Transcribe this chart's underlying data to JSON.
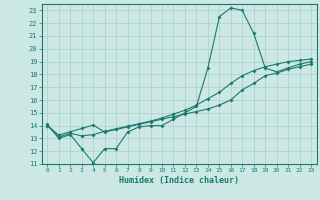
{
  "title": "",
  "xlabel": "Humidex (Indice chaleur)",
  "bg_color": "#cce8e4",
  "line_color": "#1a7a6e",
  "grid_color": "#aacfcb",
  "xlim": [
    -0.5,
    23.5
  ],
  "ylim": [
    11,
    23.5
  ],
  "xticks": [
    0,
    1,
    2,
    3,
    4,
    5,
    6,
    7,
    8,
    9,
    10,
    11,
    12,
    13,
    14,
    15,
    16,
    17,
    18,
    19,
    20,
    21,
    22,
    23
  ],
  "yticks": [
    11,
    12,
    13,
    14,
    15,
    16,
    17,
    18,
    19,
    20,
    21,
    22,
    23
  ],
  "curve1_x": [
    0,
    1,
    2,
    3,
    4,
    5,
    6,
    7,
    8,
    9,
    10,
    11,
    12,
    13,
    14,
    15,
    16,
    17,
    18,
    19,
    20,
    21,
    22,
    23
  ],
  "curve1_y": [
    14.1,
    13.0,
    13.3,
    12.2,
    11.1,
    12.2,
    12.2,
    13.5,
    13.9,
    14.0,
    14.0,
    14.5,
    15.0,
    15.5,
    18.5,
    22.5,
    23.2,
    23.0,
    21.2,
    18.5,
    18.2,
    18.5,
    18.8,
    19.0
  ],
  "curve2_x": [
    0,
    1,
    2,
    3,
    4,
    5,
    6,
    7,
    8,
    9,
    10,
    11,
    12,
    13,
    14,
    15,
    16,
    17,
    18,
    19,
    20,
    21,
    22,
    23
  ],
  "curve2_y": [
    14.0,
    13.26,
    13.52,
    13.78,
    14.04,
    13.5,
    13.7,
    13.9,
    14.1,
    14.3,
    14.5,
    14.7,
    14.9,
    15.1,
    15.3,
    15.6,
    16.0,
    16.8,
    17.3,
    17.9,
    18.1,
    18.4,
    18.6,
    18.8
  ],
  "curve3_x": [
    0,
    1,
    2,
    3,
    4,
    5,
    6,
    7,
    8,
    9,
    10,
    11,
    12,
    13,
    14,
    15,
    16,
    17,
    18,
    19,
    20,
    21,
    22,
    23
  ],
  "curve3_y": [
    14.0,
    13.1,
    13.4,
    13.2,
    13.3,
    13.55,
    13.75,
    13.95,
    14.15,
    14.35,
    14.6,
    14.9,
    15.2,
    15.6,
    16.1,
    16.6,
    17.3,
    17.9,
    18.3,
    18.6,
    18.8,
    19.0,
    19.1,
    19.2
  ]
}
